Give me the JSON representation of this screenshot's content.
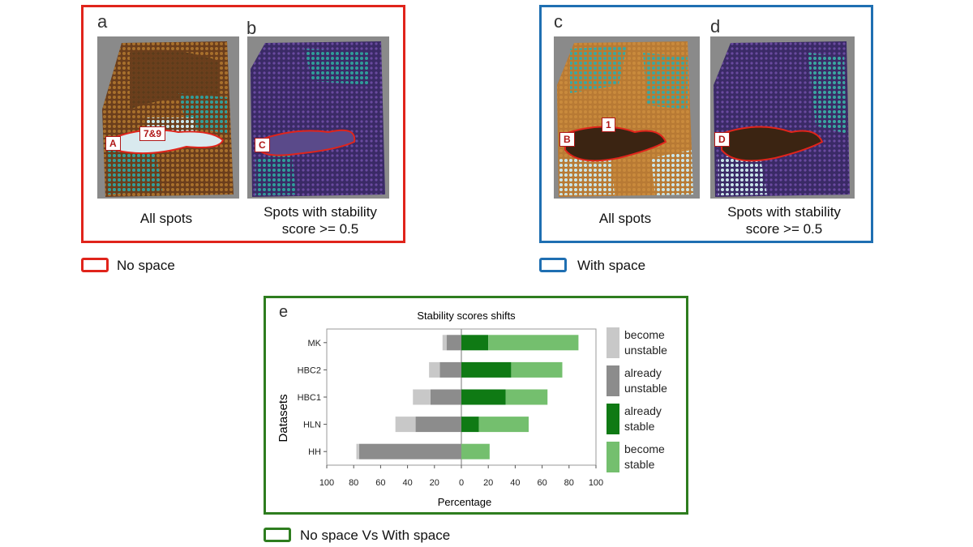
{
  "colors": {
    "no_space": "#e0241b",
    "with_space": "#1f6fb2",
    "comparison": "#2e7d1f",
    "become_unstable": "#c8c8c8",
    "already_unstable": "#8c8c8c",
    "already_stable": "#0f7a14",
    "become_stable": "#74bf6e"
  },
  "panels": {
    "a": {
      "letter": "a",
      "caption": "All spots",
      "region_label": "A",
      "cluster_label": "7&9"
    },
    "b": {
      "letter": "b",
      "caption_line1": "Spots with stability",
      "caption_line2": "score >= 0.5",
      "region_label": "C"
    },
    "c": {
      "letter": "c",
      "caption": "All spots",
      "region_label": "B",
      "cluster_label": "1"
    },
    "d": {
      "letter": "d",
      "caption_line1": "Spots with stability",
      "caption_line2": "score >= 0.5",
      "region_label": "D"
    },
    "e": {
      "letter": "e"
    }
  },
  "legends": {
    "no_space": "No space",
    "with_space": "With space",
    "comparison": "No space Vs With space"
  },
  "chart_data": {
    "type": "bar",
    "orientation": "horizontal-diverging",
    "title": "Stability scores shifts",
    "xlabel": "Percentage",
    "ylabel": "Datasets",
    "categories": [
      "MK",
      "HBC2",
      "HBC1",
      "HLN",
      "HH"
    ],
    "xlim": [
      -100,
      100
    ],
    "xticks": [
      "100",
      "80",
      "60",
      "40",
      "20",
      "0",
      "20",
      "40",
      "60",
      "80",
      "100"
    ],
    "series": [
      {
        "name": "become unstable",
        "side": "left",
        "color": "#c8c8c8",
        "values": [
          3,
          8,
          13,
          15,
          2
        ]
      },
      {
        "name": "already unstable",
        "side": "left",
        "color": "#8c8c8c",
        "values": [
          11,
          16,
          23,
          34,
          76
        ]
      },
      {
        "name": "already stable",
        "side": "right",
        "color": "#0f7a14",
        "values": [
          20,
          37,
          33,
          13,
          0
        ]
      },
      {
        "name": "become stable",
        "side": "right",
        "color": "#74bf6e",
        "values": [
          67,
          38,
          31,
          37,
          21
        ]
      }
    ],
    "legend": [
      {
        "line1": "become",
        "line2": "unstable"
      },
      {
        "line1": "already",
        "line2": "unstable"
      },
      {
        "line1": "already",
        "line2": "stable"
      },
      {
        "line1": "become",
        "line2": "stable"
      }
    ],
    "legend_position": "right"
  }
}
